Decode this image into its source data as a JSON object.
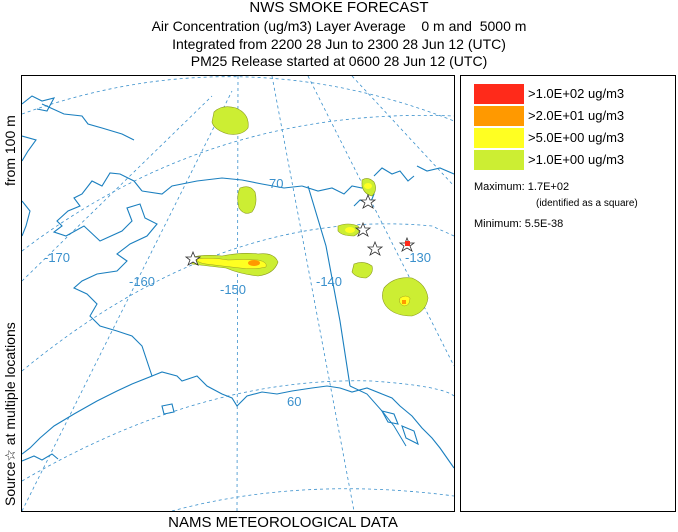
{
  "header": {
    "title": "NWS SMOKE FORECAST",
    "line2": "Air Concentration (ug/m3) Layer Average    0 m and  5000 m",
    "line3": "Integrated from 2200 28 Jun to 2300 28 Jun 12 (UTC)",
    "line4": "PM25 Release started at 0600 28 Jun 12 (UTC)"
  },
  "side_label": {
    "source": "Source☆ at multiple locations",
    "height": "from  100 m"
  },
  "footer": "NAMS METEOROLOGICAL DATA",
  "map": {
    "longitude_labels": [
      "-170",
      "-160",
      "-150",
      "-140",
      "-130"
    ],
    "latitude_labels": [
      "70",
      "60"
    ],
    "colors": {
      "coast": "#1a7fbf",
      "graticule": "#3a90cc",
      "border": "#1a7fbf"
    }
  },
  "legend": {
    "items": [
      {
        "label": ">1.0E+02 ug/m3",
        "color": "#ff2a1a"
      },
      {
        "label": ">2.0E+01 ug/m3",
        "color": "#ff9900"
      },
      {
        "label": ">5.0E+00 ug/m3",
        "color": "#ffff22"
      },
      {
        "label": ">1.0E+00 ug/m3",
        "color": "#ccee33"
      }
    ],
    "maximum": "Maximum: 1.7E+02",
    "maximum_note": "(identified as a square)",
    "minimum": "Minimum: 5.5E-38"
  }
}
